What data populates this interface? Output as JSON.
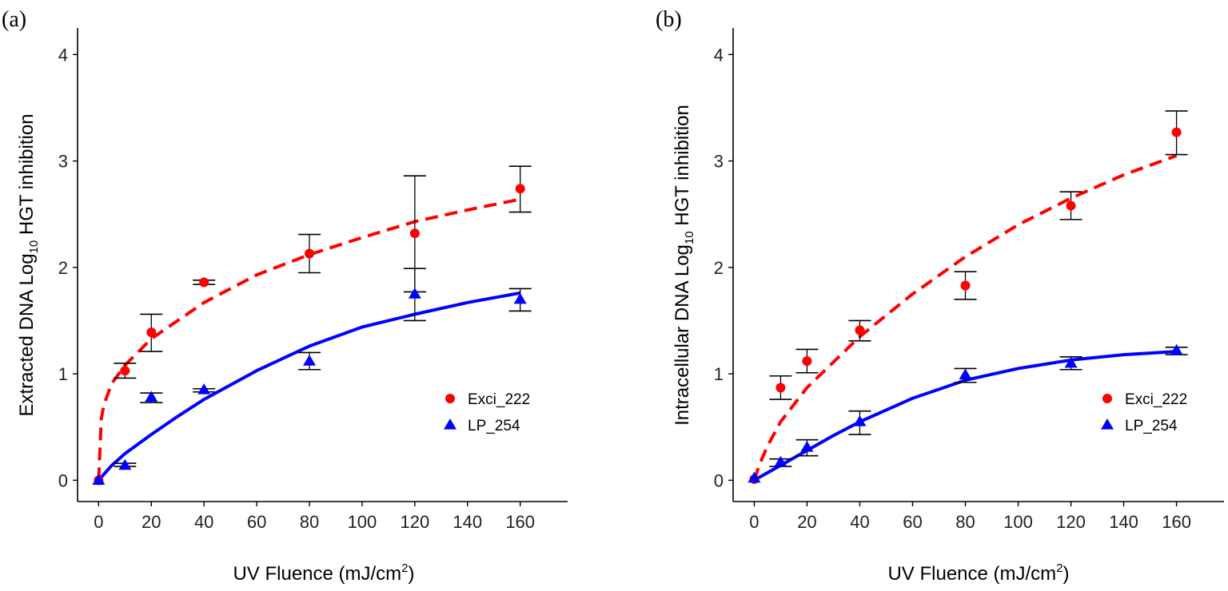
{
  "chart_data": [
    {
      "type": "scatter",
      "panel_label": "(a)",
      "ylabel_main": "Extracted DNA  Log",
      "ylabel_sub": "10",
      "ylabel_tail": " HGT inhibition",
      "xlabel_main": "UV Fluence (mJ/cm",
      "xlabel_sup": "2",
      "xlabel_tail": ")",
      "xlim": [
        -8,
        178
      ],
      "ylim": [
        -0.2,
        4.25
      ],
      "xticks": [
        0,
        20,
        40,
        60,
        80,
        100,
        120,
        140,
        160
      ],
      "yticks": [
        0,
        1,
        2,
        3,
        4
      ],
      "grid": false,
      "legend_position": "right",
      "series": [
        {
          "name": "Exci_222",
          "color": "#ff0000",
          "marker": "circle",
          "line": "dashed",
          "points": [
            {
              "x": 0,
              "y": 0.0,
              "lo": 0.0,
              "hi": 0.0
            },
            {
              "x": 10,
              "y": 1.03,
              "lo": 0.96,
              "hi": 1.1
            },
            {
              "x": 20,
              "y": 1.39,
              "lo": 1.21,
              "hi": 1.56
            },
            {
              "x": 40,
              "y": 1.86,
              "lo": 1.84,
              "hi": 1.88
            },
            {
              "x": 80,
              "y": 2.13,
              "lo": 1.95,
              "hi": 2.31
            },
            {
              "x": 120,
              "y": 2.32,
              "lo": 1.77,
              "hi": 2.86
            },
            {
              "x": 160,
              "y": 2.74,
              "lo": 2.52,
              "hi": 2.95
            }
          ],
          "fit": {
            "x": [
              0,
              1,
              2,
              5,
              10,
              20,
              40,
              60,
              80,
              100,
              120,
              140,
              160
            ],
            "y": [
              0.0,
              0.58,
              0.71,
              0.91,
              1.08,
              1.33,
              1.67,
              1.93,
              2.12,
              2.28,
              2.43,
              2.54,
              2.64
            ]
          }
        },
        {
          "name": "LP_254",
          "color": "#0000ff",
          "marker": "triangle",
          "line": "solid",
          "points": [
            {
              "x": 0,
              "y": 0.0,
              "lo": 0.0,
              "hi": 0.0
            },
            {
              "x": 10,
              "y": 0.14,
              "lo": 0.13,
              "hi": 0.16
            },
            {
              "x": 20,
              "y": 0.78,
              "lo": 0.73,
              "hi": 0.82
            },
            {
              "x": 40,
              "y": 0.85,
              "lo": 0.83,
              "hi": 0.86
            },
            {
              "x": 80,
              "y": 1.12,
              "lo": 1.04,
              "hi": 1.2
            },
            {
              "x": 120,
              "y": 1.75,
              "lo": 1.5,
              "hi": 1.99
            },
            {
              "x": 160,
              "y": 1.7,
              "lo": 1.59,
              "hi": 1.8
            }
          ],
          "fit": {
            "x": [
              0,
              5,
              10,
              20,
              30,
              40,
              60,
              80,
              100,
              120,
              140,
              160
            ],
            "y": [
              0.0,
              0.14,
              0.25,
              0.43,
              0.6,
              0.76,
              1.03,
              1.26,
              1.44,
              1.56,
              1.67,
              1.76
            ]
          }
        }
      ]
    },
    {
      "type": "scatter",
      "panel_label": "(b)",
      "ylabel_main": "Intracellular DNA  Log",
      "ylabel_sub": "10",
      "ylabel_tail": " HGT inhibition",
      "xlabel_main": "UV Fluence (mJ/cm",
      "xlabel_sup": "2",
      "xlabel_tail": ")",
      "xlim": [
        -8,
        178
      ],
      "ylim": [
        -0.2,
        4.25
      ],
      "xticks": [
        0,
        20,
        40,
        60,
        80,
        100,
        120,
        140,
        160
      ],
      "yticks": [
        0,
        1,
        2,
        3,
        4
      ],
      "grid": false,
      "legend_position": "right",
      "series": [
        {
          "name": "Exci_222",
          "color": "#ff0000",
          "marker": "circle",
          "line": "dashed",
          "points": [
            {
              "x": 0,
              "y": 0.01,
              "lo": 0.01,
              "hi": 0.01
            },
            {
              "x": 10,
              "y": 0.87,
              "lo": 0.76,
              "hi": 0.98
            },
            {
              "x": 20,
              "y": 1.12,
              "lo": 1.01,
              "hi": 1.23
            },
            {
              "x": 40,
              "y": 1.41,
              "lo": 1.31,
              "hi": 1.5
            },
            {
              "x": 80,
              "y": 1.83,
              "lo": 1.7,
              "hi": 1.96
            },
            {
              "x": 120,
              "y": 2.58,
              "lo": 2.45,
              "hi": 2.71
            },
            {
              "x": 160,
              "y": 3.27,
              "lo": 3.06,
              "hi": 3.47
            }
          ],
          "fit": {
            "x": [
              0,
              2,
              5,
              10,
              20,
              40,
              60,
              80,
              100,
              120,
              140,
              160
            ],
            "y": [
              0.0,
              0.15,
              0.32,
              0.55,
              0.87,
              1.35,
              1.75,
              2.1,
              2.4,
              2.65,
              2.87,
              3.05
            ]
          }
        },
        {
          "name": "LP_254",
          "color": "#0000ff",
          "marker": "triangle",
          "line": "solid",
          "points": [
            {
              "x": 0,
              "y": 0.02,
              "lo": 0.02,
              "hi": 0.02
            },
            {
              "x": 10,
              "y": 0.17,
              "lo": 0.13,
              "hi": 0.2
            },
            {
              "x": 20,
              "y": 0.31,
              "lo": 0.23,
              "hi": 0.38
            },
            {
              "x": 40,
              "y": 0.55,
              "lo": 0.43,
              "hi": 0.65
            },
            {
              "x": 80,
              "y": 0.99,
              "lo": 0.92,
              "hi": 1.05
            },
            {
              "x": 120,
              "y": 1.1,
              "lo": 1.04,
              "hi": 1.16
            },
            {
              "x": 160,
              "y": 1.22,
              "lo": 1.18,
              "hi": 1.25
            }
          ],
          "fit": {
            "x": [
              0,
              10,
              20,
              30,
              40,
              60,
              80,
              100,
              120,
              140,
              160
            ],
            "y": [
              0.0,
              0.14,
              0.28,
              0.42,
              0.55,
              0.77,
              0.94,
              1.05,
              1.13,
              1.18,
              1.21
            ]
          }
        }
      ]
    }
  ]
}
